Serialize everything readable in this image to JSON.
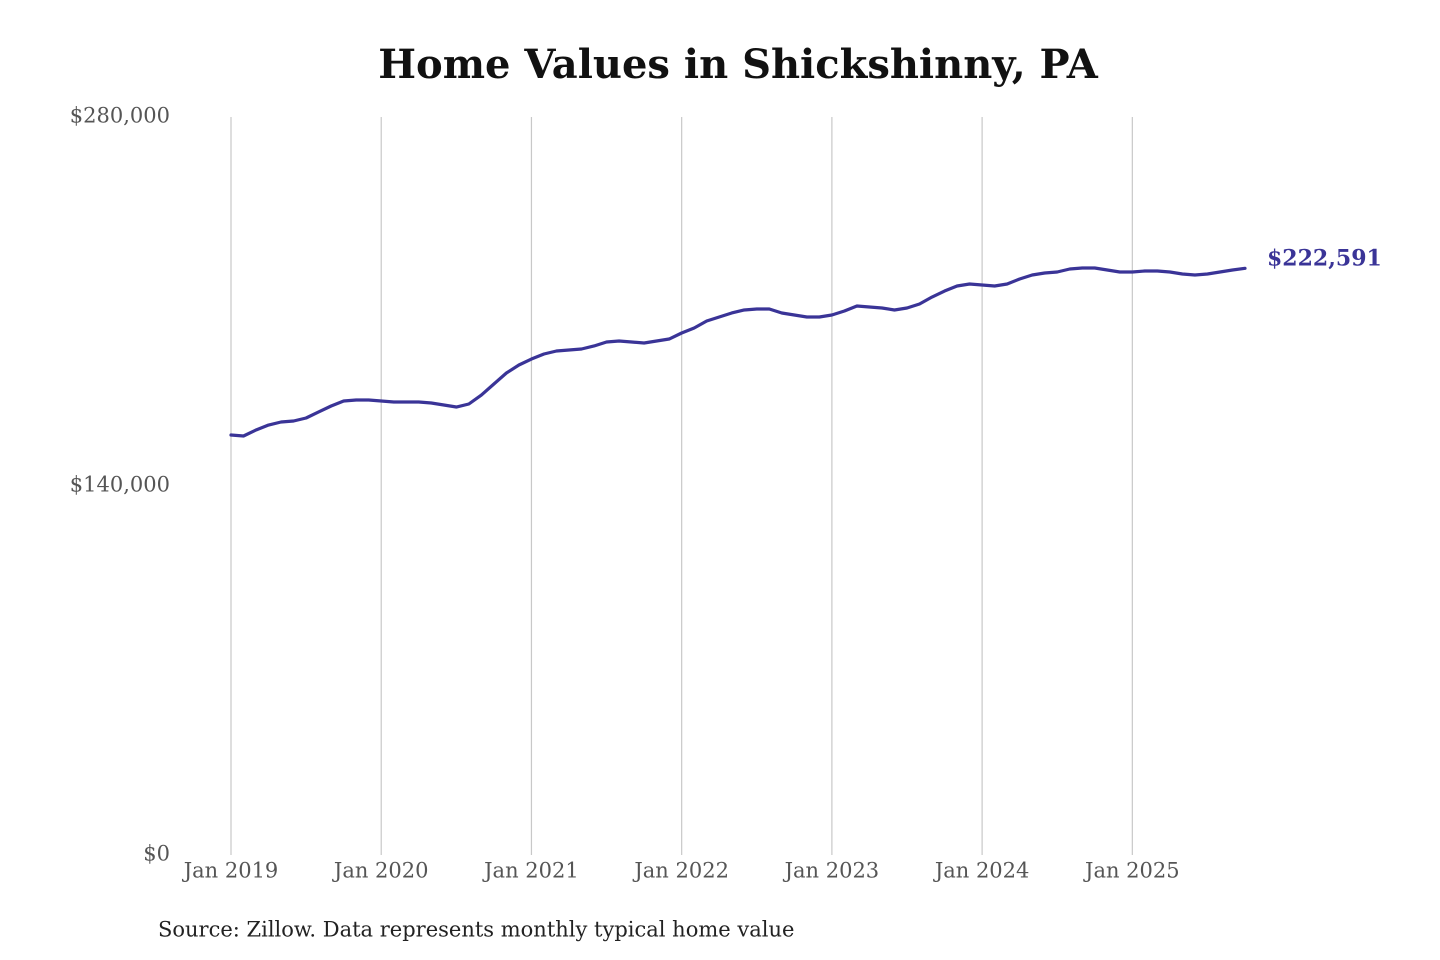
{
  "chart_data": {
    "type": "line",
    "title": "Home Values in Shickshinny, PA",
    "source": "Source: Zillow. Data represents monthly typical home value",
    "x": [
      "2019-01",
      "2019-02",
      "2019-03",
      "2019-04",
      "2019-05",
      "2019-06",
      "2019-07",
      "2019-08",
      "2019-09",
      "2019-10",
      "2019-11",
      "2019-12",
      "2020-01",
      "2020-02",
      "2020-03",
      "2020-04",
      "2020-05",
      "2020-06",
      "2020-07",
      "2020-08",
      "2020-09",
      "2020-10",
      "2020-11",
      "2020-12",
      "2021-01",
      "2021-02",
      "2021-03",
      "2021-04",
      "2021-05",
      "2021-06",
      "2021-07",
      "2021-08",
      "2021-09",
      "2021-10",
      "2021-11",
      "2021-12",
      "2022-01",
      "2022-02",
      "2022-03",
      "2022-04",
      "2022-05",
      "2022-06",
      "2022-07",
      "2022-08",
      "2022-09",
      "2022-10",
      "2022-11",
      "2022-12",
      "2023-01",
      "2023-02",
      "2023-03",
      "2023-04",
      "2023-05",
      "2023-06",
      "2023-07",
      "2023-08",
      "2023-09",
      "2023-10",
      "2023-11",
      "2023-12",
      "2024-01",
      "2024-02",
      "2024-03",
      "2024-04",
      "2024-05",
      "2024-06",
      "2024-07",
      "2024-08",
      "2024-09",
      "2024-10",
      "2024-11",
      "2024-12",
      "2025-01",
      "2025-02",
      "2025-03",
      "2025-04",
      "2025-05",
      "2025-06",
      "2025-07",
      "2025-08",
      "2025-09",
      "2025-10"
    ],
    "series": [
      {
        "name": "Home value",
        "color": "#3a3497",
        "values": [
          159350,
          158970,
          161250,
          163140,
          164280,
          164660,
          165800,
          168080,
          170350,
          172250,
          172630,
          172630,
          172250,
          171870,
          171870,
          171870,
          171490,
          170730,
          169970,
          171110,
          174520,
          178700,
          182870,
          185910,
          188180,
          190080,
          191220,
          191600,
          191980,
          193120,
          194640,
          195020,
          194640,
          194260,
          195020,
          195770,
          198050,
          199950,
          202600,
          204120,
          205640,
          206780,
          207160,
          207160,
          205640,
          204880,
          204120,
          204120,
          204880,
          206390,
          208290,
          207910,
          207530,
          206780,
          207530,
          209050,
          211700,
          213980,
          215880,
          216640,
          216260,
          215880,
          216640,
          218540,
          220050,
          220810,
          221190,
          222330,
          222710,
          222710,
          221950,
          221190,
          221190,
          221570,
          221570,
          221190,
          220430,
          220050,
          220430,
          221190,
          221950,
          222591
        ],
        "value_labels": [
          null,
          null,
          null,
          null,
          null,
          null,
          null,
          null,
          null,
          null,
          null,
          null,
          null,
          null,
          null,
          null,
          null,
          null,
          null,
          null,
          null,
          null,
          null,
          null,
          null,
          null,
          null,
          null,
          null,
          null,
          null,
          null,
          null,
          null,
          null,
          null,
          null,
          null,
          null,
          null,
          null,
          null,
          null,
          null,
          null,
          null,
          null,
          null,
          null,
          null,
          null,
          null,
          null,
          null,
          null,
          null,
          null,
          null,
          null,
          null,
          null,
          null,
          null,
          null,
          null,
          null,
          null,
          null,
          null,
          null,
          null,
          null,
          null,
          null,
          null,
          null,
          null,
          null,
          null,
          null,
          null,
          "$222,591"
        ]
      }
    ],
    "xticks": [
      {
        "value": "2019-01",
        "label": "Jan 2019"
      },
      {
        "value": "2020-01",
        "label": "Jan 2020"
      },
      {
        "value": "2021-01",
        "label": "Jan 2021"
      },
      {
        "value": "2022-01",
        "label": "Jan 2022"
      },
      {
        "value": "2023-01",
        "label": "Jan 2023"
      },
      {
        "value": "2024-01",
        "label": "Jan 2024"
      },
      {
        "value": "2025-01",
        "label": "Jan 2025"
      }
    ],
    "ylim": [
      0,
      280000
    ],
    "yticks": [
      {
        "value": 0,
        "label": "$0"
      },
      {
        "value": 140000,
        "label": "$140,000"
      },
      {
        "value": 280000,
        "label": "$280,000"
      }
    ],
    "grid": "x"
  }
}
